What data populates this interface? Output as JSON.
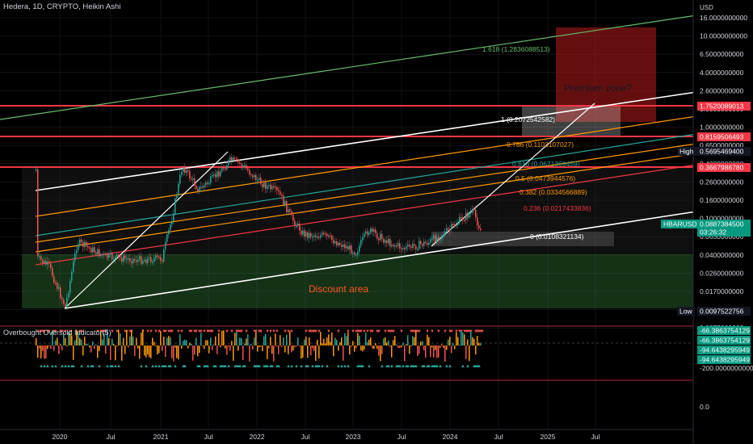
{
  "header": {
    "title": "Hedera, 1D, CRYPTO, Heikin Ashi",
    "currency": "USD"
  },
  "chart_data": {
    "type": "candlestick",
    "scale": "log",
    "symbol": "HBARUSD",
    "x_ticks": [
      "2020",
      "Jul",
      "2021",
      "Jul",
      "2022",
      "Jul",
      "2023",
      "Jul",
      "2024",
      "Jul",
      "2025",
      "Jul"
    ],
    "y_ticks": [
      "16.0000000000",
      "10.0000000000",
      "6.5000000000",
      "4.0000000000",
      "2.6000000000",
      "1.6500000000",
      "1.0000000000",
      "0.6500000000",
      "0.4000000000",
      "0.2600000000",
      "0.1600000000",
      "0.1000000000",
      "0.0650000000",
      "0.0400000000",
      "0.0260000000",
      "0.0170000000",
      "0.0110000000",
      "0.0072000000"
    ],
    "badges": [
      {
        "text": "1.7520089013",
        "color": "#f23645"
      },
      {
        "text": "0.8159506493",
        "color": "#f23645"
      },
      {
        "text": "High",
        "color": "#131722"
      },
      {
        "text": "0.5695469400",
        "color": "#131722"
      },
      {
        "text": "0.3667986780",
        "color": "#f23645"
      },
      {
        "text": "HBARUSD",
        "color": "#089981"
      },
      {
        "text": "0.0887384500",
        "color": "#089981"
      },
      {
        "text": "03:26:32",
        "color": "#089981"
      },
      {
        "text": "Low",
        "color": "#131722"
      },
      {
        "text": "0.0097522756",
        "color": "#131722"
      }
    ],
    "fib_levels": [
      {
        "label": "1.618 (1.2836088513)",
        "color": "#66bb6a"
      },
      {
        "label": "1 (0.2072542582)",
        "color": "#ffffff"
      },
      {
        "label": "0.786 (0.1103107027)",
        "color": "#ff9800"
      },
      {
        "label": "0.618 (0.0671369459)",
        "color": "#26a69a"
      },
      {
        "label": "0.5 (0.0473944576)",
        "color": "#ff9800"
      },
      {
        "label": "0.382 (0.0334566889)",
        "color": "#ff9800"
      },
      {
        "label": "0.236 (0.0217433836)",
        "color": "#f23645"
      },
      {
        "label": "0 (0.0108321134)",
        "color": "#ffffff"
      }
    ],
    "annotations": [
      "Premium zone?",
      "Discount area"
    ],
    "indicator": {
      "title": "Overbought Oversold Indicator(5)",
      "y_ticks": [
        "-200.0000000000",
        "0.0"
      ],
      "badges": [
        "-66.3863754129",
        "-66.3863754129",
        "-94.6438295949",
        "-94.6438295949"
      ]
    }
  }
}
